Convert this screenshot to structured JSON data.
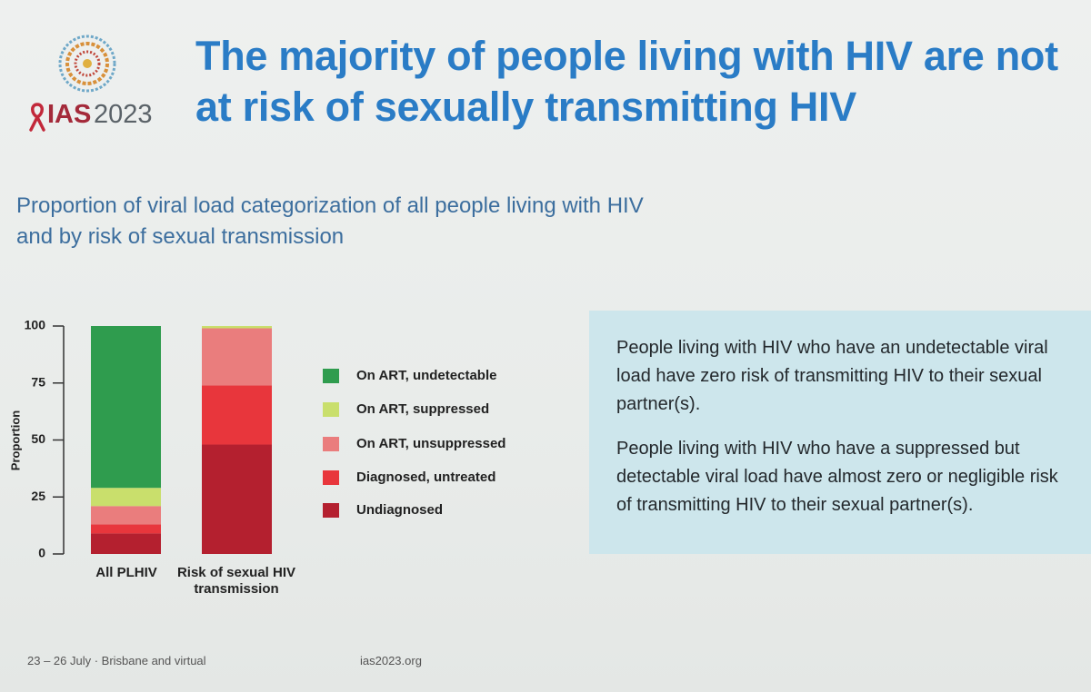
{
  "header": {
    "title": "The majority of people living with HIV are not at risk of sexually transmitting HIV",
    "logo_org": "IAS",
    "logo_year": "2023"
  },
  "chart_data": {
    "type": "stacked-bar",
    "title": "Proportion of viral load categorization of all people living with HIV and by risk of sexual transmission",
    "y_label": "Proportion",
    "categories": [
      "All PLHIV",
      "Risk of sexual HIV transmission"
    ],
    "series": [
      {
        "name": "On ART, undetectable",
        "color": "#2f9c4e",
        "values": [
          71,
          0
        ]
      },
      {
        "name": "On ART, suppressed",
        "color": "#c9df6c",
        "values": [
          8,
          1
        ]
      },
      {
        "name": "On ART, unsuppressed",
        "color": "#ea7d7d",
        "values": [
          8,
          25
        ]
      },
      {
        "name": "Diagnosed, untreated",
        "color": "#e8363c",
        "values": [
          4,
          26
        ]
      },
      {
        "name": "Undiagnosed",
        "color": "#b4202f",
        "values": [
          9,
          48
        ]
      }
    ],
    "ylim": [
      0,
      100
    ],
    "yticks": [
      0,
      25,
      50,
      75,
      100
    ],
    "grid": false,
    "legend": "right"
  },
  "info_box": {
    "paragraphs": [
      "People living with HIV who have an undetectable viral load have zero risk of transmitting HIV to their sexual partner(s).",
      "People living with HIV who have a suppressed but detectable viral load have almost zero or negligible risk of transmitting HIV to their sexual partner(s)."
    ]
  },
  "footer": {
    "dates": "23 – 26 July · Brisbane and virtual",
    "url": "ias2023.org"
  }
}
